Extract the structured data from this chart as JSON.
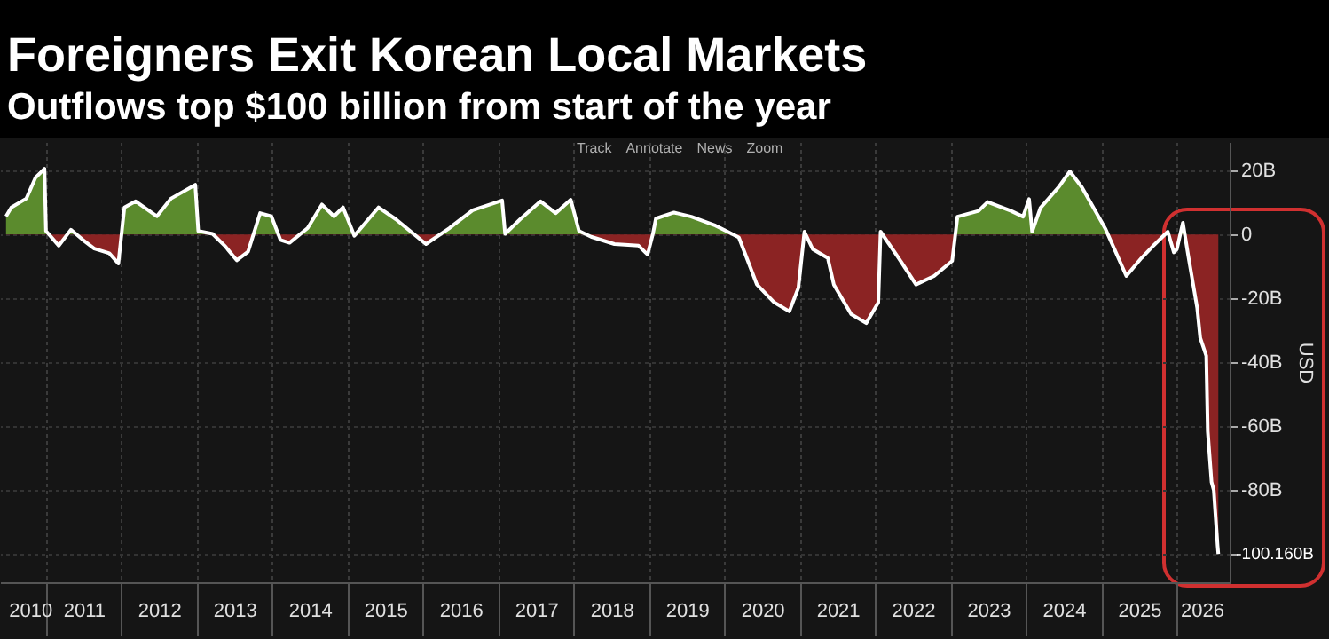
{
  "chart_data": {
    "type": "area",
    "title": "Foreigners Exit Korean Local Markets",
    "subtitle": "Outflows top $100 billion from start of the year",
    "ylabel": "USD",
    "series": [
      {
        "color": "#ffffff",
        "x": [
          2010.47,
          2010.54,
          2010.74,
          2010.86,
          2010.98,
          2011.0,
          2011.17,
          2011.33,
          2011.49,
          2011.64,
          2011.84,
          2011.96,
          2012.04,
          2012.19,
          2012.47,
          2012.66,
          2012.98,
          2013.02,
          2013.21,
          2013.37,
          2013.53,
          2013.68,
          2013.84,
          2013.99,
          2014.11,
          2014.23,
          2014.47,
          2014.66,
          2014.82,
          2014.94,
          2015.09,
          2015.41,
          2015.64,
          2016.04,
          2016.35,
          2016.66,
          2017.05,
          2017.09,
          2017.29,
          2017.56,
          2017.76,
          2017.96,
          2018.07,
          2018.23,
          2018.54,
          2018.86,
          2018.98,
          2019.05,
          2019.09,
          2019.33,
          2019.56,
          2019.88,
          2020.04,
          2020.19,
          2020.43,
          2020.66,
          2020.86,
          2020.98,
          2021.06,
          2021.17,
          2021.37,
          2021.45,
          2021.68,
          2021.88,
          2022.04,
          2022.07,
          2022.31,
          2022.54,
          2022.78,
          2023.02,
          2023.09,
          2023.37,
          2023.49,
          2023.8,
          2023.96,
          2024.04,
          2024.08,
          2024.19,
          2024.43,
          2024.58,
          2024.74,
          2025.05,
          2025.33,
          2025.53,
          2025.68,
          2025.88,
          2025.96,
          2026.0,
          2026.08,
          2026.15,
          2026.27,
          2026.31,
          2026.39,
          2026.41,
          2026.46,
          2026.49,
          2026.54,
          2026.55
        ],
        "values": [
          5.7,
          8.5,
          11.3,
          17.8,
          20.6,
          1.1,
          -3.5,
          1.5,
          -1.7,
          -4.4,
          -5.9,
          -9.1,
          8.5,
          10.4,
          5.7,
          11.3,
          15.6,
          1.1,
          0.2,
          -3.5,
          -8.1,
          -5.4,
          6.7,
          5.7,
          -1.7,
          -2.6,
          2,
          9.4,
          5.7,
          8.5,
          -0.4,
          8.5,
          4.8,
          -3,
          2,
          7.6,
          10.7,
          0.2,
          4.8,
          10.4,
          6.7,
          10.9,
          1.1,
          -0.7,
          -3,
          -3.5,
          -6.3,
          0.2,
          5,
          6.9,
          5.6,
          2.8,
          0.9,
          -0.9,
          -15.7,
          -21.3,
          -24.1,
          -16.7,
          0.9,
          -4.6,
          -7.4,
          -15.7,
          -25,
          -27.8,
          -21.3,
          0.9,
          -7.4,
          -15.7,
          -13,
          -8.3,
          5.6,
          7.4,
          10.2,
          7.4,
          5.6,
          11.1,
          0.9,
          8.3,
          14.8,
          19.8,
          14.8,
          1.9,
          -13,
          -7.4,
          -3.7,
          0.9,
          -5.6,
          -4.6,
          3.7,
          -6.5,
          -23.1,
          -32.4,
          -38,
          -61.7,
          -77.6,
          -80.2,
          -97.5,
          -100.16
        ]
      }
    ],
    "colors": [
      "#5b8b2d",
      "#8b2323"
    ],
    "xlim": [
      2010.39,
      2026.7
    ],
    "xticks": [
      {
        "value": 2010.5,
        "label": "2010"
      },
      {
        "value": 2011,
        "label": null
      },
      {
        "value": 2011.5,
        "label": "2011"
      },
      {
        "value": 2012,
        "label": null
      },
      {
        "value": 2012.5,
        "label": "2012"
      },
      {
        "value": 2013,
        "label": null
      },
      {
        "value": 2013.5,
        "label": "2013"
      },
      {
        "value": 2014,
        "label": null
      },
      {
        "value": 2014.5,
        "label": "2014"
      },
      {
        "value": 2015,
        "label": null
      },
      {
        "value": 2015.5,
        "label": "2015"
      },
      {
        "value": 2016,
        "label": null
      },
      {
        "value": 2016.5,
        "label": "2016"
      },
      {
        "value": 2017,
        "label": null
      },
      {
        "value": 2017.5,
        "label": "2017"
      },
      {
        "value": 2018,
        "label": null
      },
      {
        "value": 2018.5,
        "label": "2018"
      },
      {
        "value": 2019,
        "label": null
      },
      {
        "value": 2019.5,
        "label": "2019"
      },
      {
        "value": 2020,
        "label": null
      },
      {
        "value": 2020.5,
        "label": "2020"
      },
      {
        "value": 2021,
        "label": null
      },
      {
        "value": 2021.5,
        "label": "2021"
      },
      {
        "value": 2022,
        "label": null
      },
      {
        "value": 2022.5,
        "label": "2022"
      },
      {
        "value": 2023,
        "label": null
      },
      {
        "value": 2023.5,
        "label": "2023"
      },
      {
        "value": 2024,
        "label": null
      },
      {
        "value": 2024.5,
        "label": "2024"
      },
      {
        "value": 2025,
        "label": null
      },
      {
        "value": 2025.5,
        "label": "2025"
      },
      {
        "value": 2026,
        "label": null
      },
      {
        "value": 2026.33,
        "label": "2026"
      }
    ],
    "ylim": [
      -109,
      29
    ],
    "yticks": [
      {
        "value": 20,
        "label": "20B"
      },
      {
        "value": 0,
        "label": "0"
      },
      {
        "value": -20,
        "label": "-20B"
      },
      {
        "value": -40,
        "label": "-40B"
      },
      {
        "value": -60,
        "label": "-60B"
      },
      {
        "value": -80,
        "label": "-80B"
      },
      {
        "value": -100,
        "label": null
      }
    ],
    "grid": true,
    "annotations": [
      {
        "text": "-100.160B",
        "x": 2026.55,
        "y": -100.16
      },
      "Track",
      "Annotate",
      "News",
      "Zoom"
    ]
  }
}
